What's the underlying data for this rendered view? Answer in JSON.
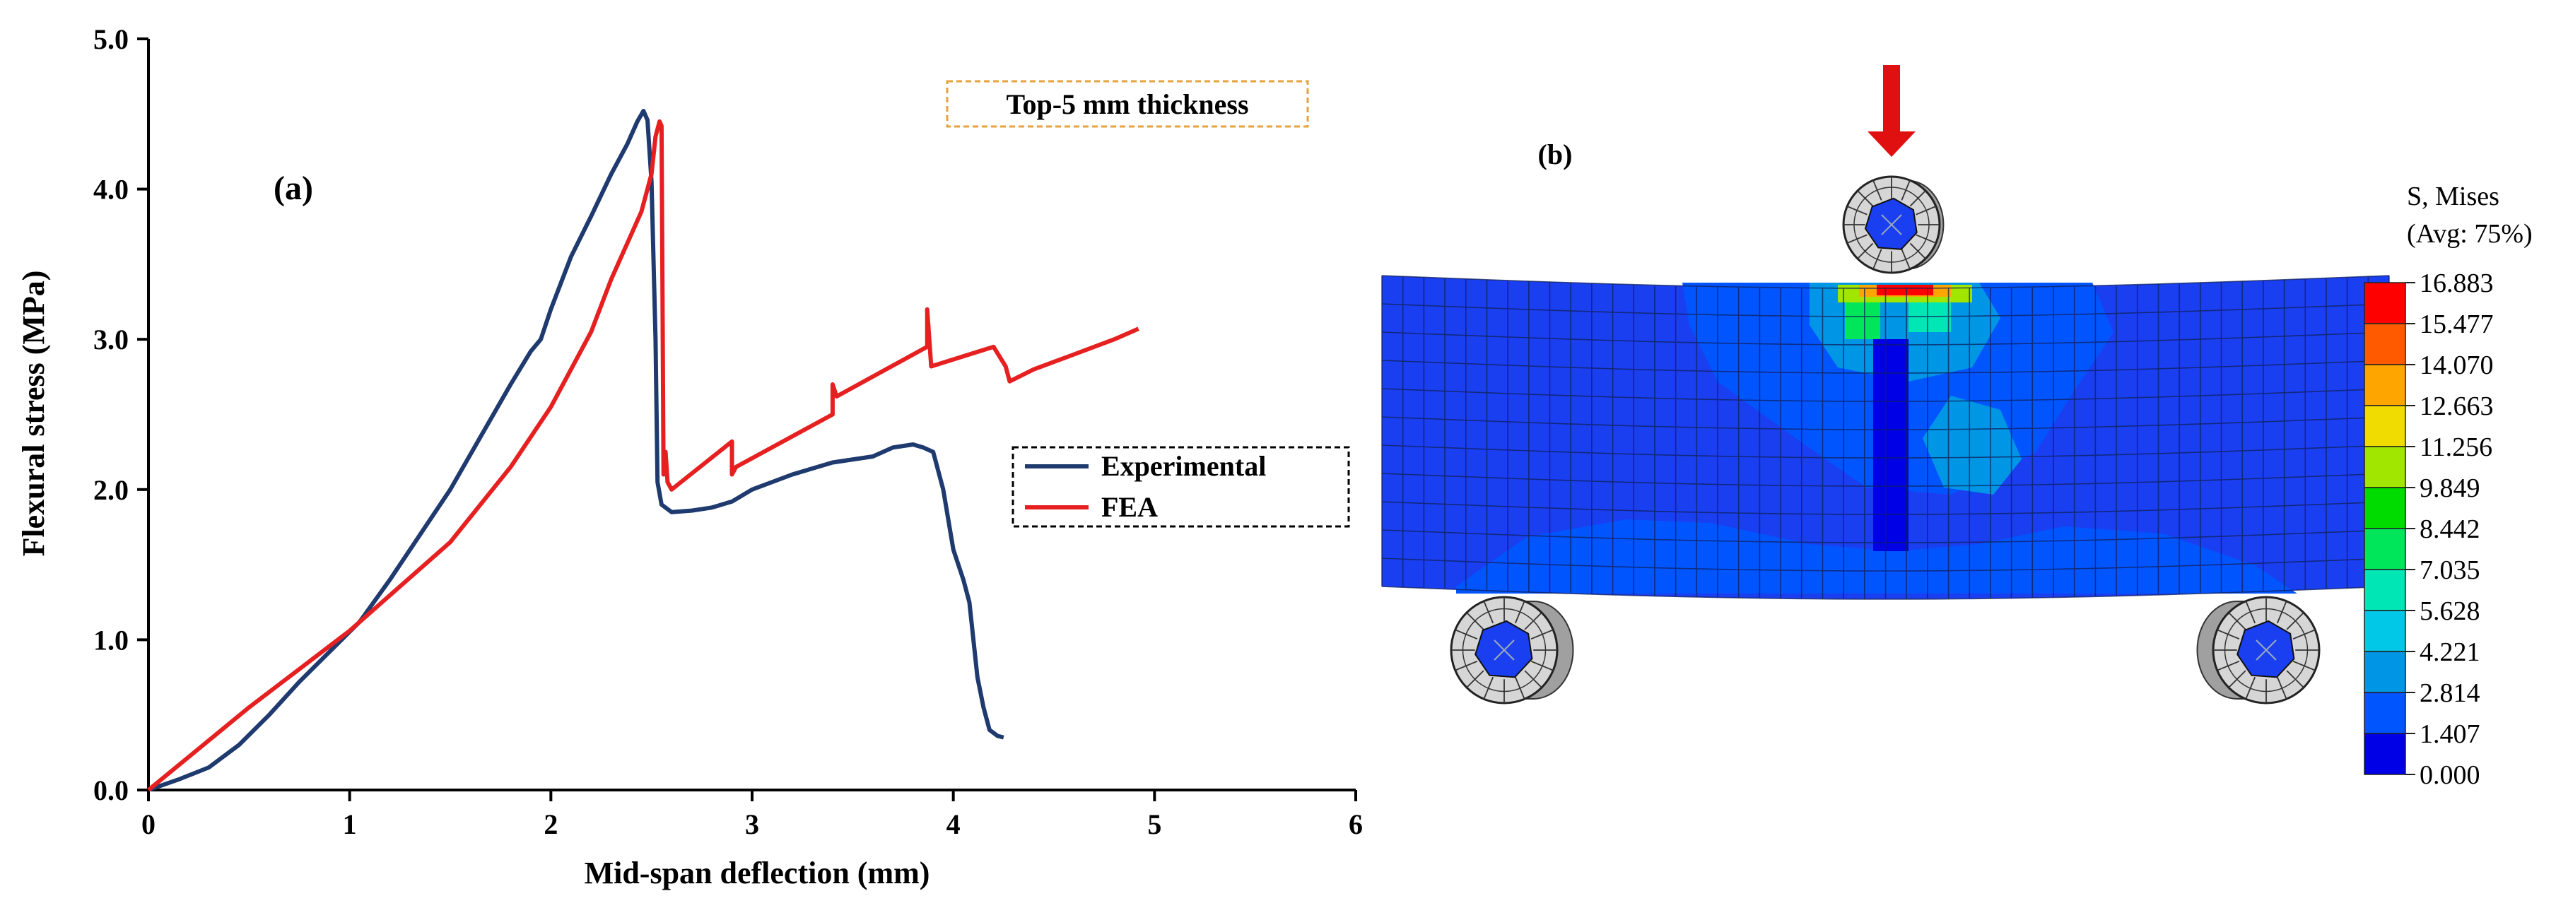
{
  "chart_data": [
    {
      "type": "line",
      "panel_label": "(a)",
      "annotation": "Top-5 mm thickness",
      "xlabel": "Mid-span deflection (mm)",
      "ylabel": "Flexural stress (MPa)",
      "xlim": [
        0,
        6
      ],
      "ylim": [
        0,
        5
      ],
      "xticks": [
        "0",
        "1",
        "2",
        "3",
        "4",
        "5",
        "6"
      ],
      "yticks": [
        "0.0",
        "1.0",
        "2.0",
        "3.0",
        "4.0",
        "5.0"
      ],
      "legend_position": "center-right",
      "series": [
        {
          "name": "Experimental",
          "color": "#1f3a6e",
          "x": [
            0,
            0.15,
            0.3,
            0.45,
            0.6,
            0.75,
            0.9,
            1.05,
            1.2,
            1.35,
            1.5,
            1.65,
            1.8,
            1.9,
            1.95,
            2.0,
            2.1,
            2.2,
            2.3,
            2.38,
            2.43,
            2.46,
            2.48,
            2.5,
            2.52,
            2.53,
            2.55,
            2.6,
            2.7,
            2.8,
            2.9,
            3.0,
            3.2,
            3.4,
            3.6,
            3.7,
            3.8,
            3.85,
            3.9,
            3.95,
            4.0,
            4.05,
            4.08,
            4.1,
            4.12,
            4.15,
            4.18,
            4.2,
            4.22,
            4.25
          ],
          "y": [
            0,
            0.07,
            0.15,
            0.3,
            0.5,
            0.72,
            0.92,
            1.12,
            1.4,
            1.7,
            2.0,
            2.35,
            2.7,
            2.92,
            3.0,
            3.2,
            3.55,
            3.82,
            4.1,
            4.3,
            4.45,
            4.52,
            4.46,
            4.05,
            3.0,
            2.05,
            1.9,
            1.85,
            1.86,
            1.88,
            1.92,
            2.0,
            2.1,
            2.18,
            2.22,
            2.28,
            2.3,
            2.28,
            2.25,
            2.0,
            1.6,
            1.4,
            1.25,
            1.0,
            0.75,
            0.55,
            0.4,
            0.38,
            0.36,
            0.35
          ]
        },
        {
          "name": "FEA",
          "color": "#e62020",
          "x": [
            0,
            0.5,
            1.0,
            1.5,
            1.8,
            2.0,
            2.2,
            2.3,
            2.4,
            2.45,
            2.5,
            2.52,
            2.54,
            2.55,
            2.56,
            2.57,
            2.58,
            2.6,
            2.9,
            2.9,
            2.92,
            3.4,
            3.4,
            3.42,
            3.87,
            3.87,
            3.89,
            4.2,
            4.26,
            4.28,
            4.4,
            4.6,
            4.8,
            4.92
          ],
          "y": [
            0,
            0.55,
            1.06,
            1.65,
            2.15,
            2.55,
            3.05,
            3.4,
            3.7,
            3.85,
            4.1,
            4.35,
            4.45,
            4.42,
            2.1,
            2.25,
            2.05,
            2.0,
            2.32,
            2.1,
            2.15,
            2.5,
            2.7,
            2.62,
            2.95,
            3.2,
            2.82,
            2.95,
            2.82,
            2.72,
            2.8,
            2.9,
            3.0,
            3.07
          ]
        }
      ]
    },
    {
      "type": "heatmap",
      "panel_label": "(b)",
      "legend_title_line1": "S, Mises",
      "legend_title_line2": "(Avg: 75%)",
      "legend_values": [
        "16.883",
        "15.477",
        "14.070",
        "12.663",
        "11.256",
        "9.849",
        "8.442",
        "7.035",
        "5.628",
        "4.221",
        "2.814",
        "1.407",
        "0.000"
      ],
      "legend_colors": [
        "#ff0000",
        "#ff5a00",
        "#ffa500",
        "#f0dc00",
        "#a0e600",
        "#00dc00",
        "#00e65a",
        "#00e6b4",
        "#00c8e6",
        "#0096e6",
        "#0055ff",
        "#0000e6"
      ],
      "load_arrow_color": "#e01010",
      "beam_color": "#1a3ff0"
    }
  ]
}
